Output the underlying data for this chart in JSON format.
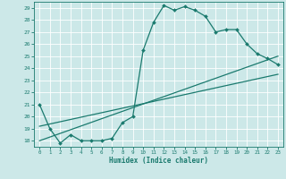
{
  "xlabel": "Humidex (Indice chaleur)",
  "ylabel": "",
  "xlim": [
    -0.5,
    23.5
  ],
  "ylim": [
    17.5,
    29.5
  ],
  "yticks": [
    18,
    19,
    20,
    21,
    22,
    23,
    24,
    25,
    26,
    27,
    28,
    29
  ],
  "xticks": [
    0,
    1,
    2,
    3,
    4,
    5,
    6,
    7,
    8,
    9,
    10,
    11,
    12,
    13,
    14,
    15,
    16,
    17,
    18,
    19,
    20,
    21,
    22,
    23
  ],
  "bg_color": "#cce8e8",
  "line_color": "#1a7a6e",
  "grid_color": "#ffffff",
  "lines": [
    {
      "x": [
        0,
        1,
        2,
        3,
        4,
        5,
        6,
        7,
        8,
        9,
        10,
        11,
        12,
        13,
        14,
        15,
        16,
        17,
        18,
        19,
        20,
        21,
        22,
        23
      ],
      "y": [
        21.0,
        19.0,
        17.8,
        18.5,
        18.0,
        18.0,
        18.0,
        18.2,
        19.5,
        20.0,
        25.5,
        27.8,
        29.2,
        28.8,
        29.1,
        28.8,
        28.3,
        27.0,
        27.2,
        27.2,
        26.0,
        25.2,
        24.8,
        24.3
      ],
      "marker": "D",
      "markersize": 2.0,
      "linewidth": 0.9,
      "with_marker": true
    },
    {
      "x": [
        0,
        23
      ],
      "y": [
        18.0,
        25.0
      ],
      "marker": null,
      "markersize": 0,
      "linewidth": 0.9,
      "with_marker": false
    },
    {
      "x": [
        0,
        23
      ],
      "y": [
        19.2,
        23.5
      ],
      "marker": null,
      "markersize": 0,
      "linewidth": 0.9,
      "with_marker": false
    }
  ]
}
